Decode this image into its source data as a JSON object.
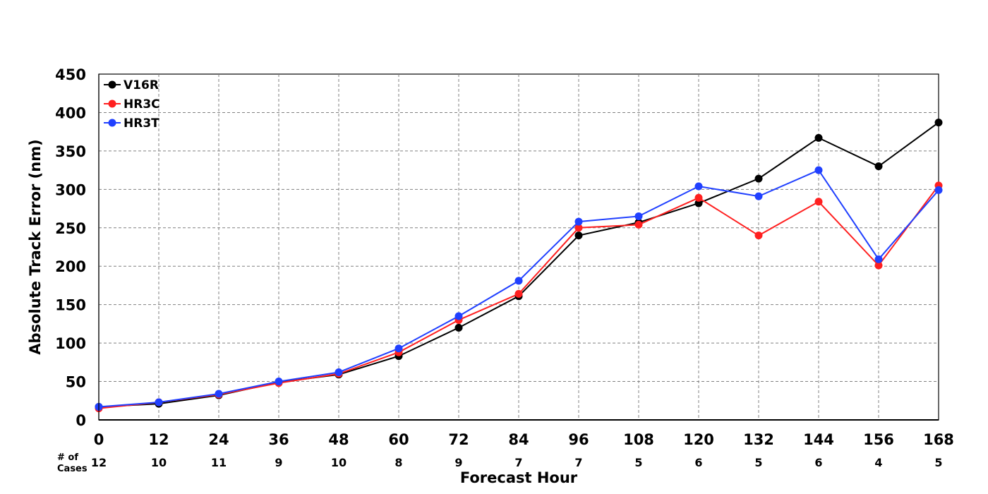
{
  "chart_data": {
    "type": "line",
    "title": "",
    "xlabel": "Forecast Hour",
    "ylabel": "Absolute Track Error (nm)",
    "x": [
      0,
      12,
      24,
      36,
      48,
      60,
      72,
      84,
      96,
      108,
      120,
      132,
      144,
      156,
      168
    ],
    "xlim": [
      0,
      168
    ],
    "ylim": [
      0,
      450
    ],
    "yticks": [
      0,
      50,
      100,
      150,
      200,
      250,
      300,
      350,
      400,
      450
    ],
    "grid": true,
    "legend_position": "top-left",
    "series": [
      {
        "name": "V16R",
        "color": "#000000",
        "values": [
          17,
          21,
          32,
          49,
          59,
          83,
          120,
          161,
          240,
          257,
          282,
          314,
          367,
          330,
          387
        ]
      },
      {
        "name": "HR3C",
        "color": "#ff2020",
        "values": [
          15,
          23,
          33,
          48,
          60,
          88,
          130,
          164,
          250,
          254,
          289,
          240,
          284,
          201,
          305
        ]
      },
      {
        "name": "HR3T",
        "color": "#2040ff",
        "values": [
          17,
          23,
          34,
          50,
          62,
          93,
          135,
          181,
          258,
          265,
          304,
          291,
          325,
          209,
          299
        ]
      }
    ],
    "cases": {
      "title_line1": "# of",
      "title_line2": "Cases",
      "values": [
        "12",
        "10",
        "11",
        "9",
        "10",
        "8",
        "9",
        "7",
        "7",
        "5",
        "6",
        "5",
        "6",
        "4",
        "5"
      ]
    }
  }
}
